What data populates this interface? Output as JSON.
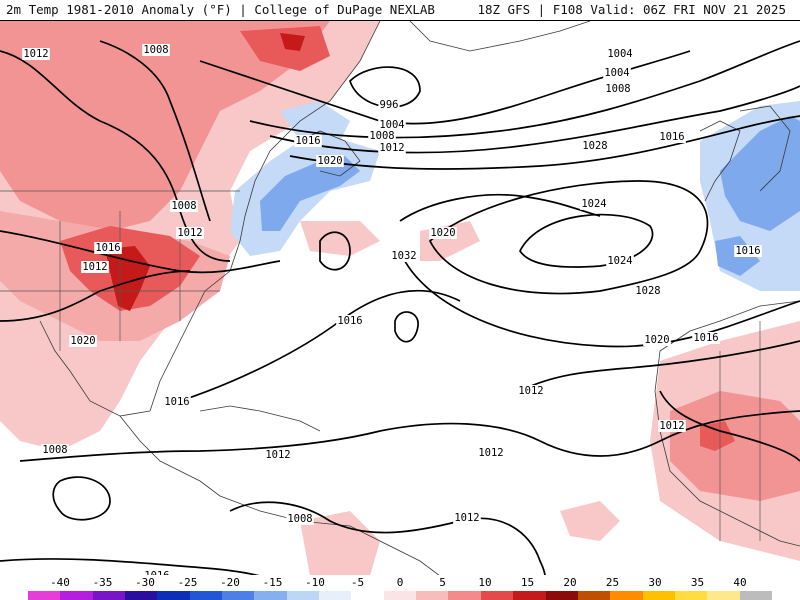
{
  "header": {
    "title_left": "2m Temp 1981-2010 Anomaly (°F) | College of DuPage NEXLAB",
    "title_right": "18Z GFS | F108 Valid: 06Z FRI NOV 21 2025"
  },
  "isobar_labels": [
    "1012",
    "1008",
    "1004",
    "996",
    "1004",
    "1008",
    "1012",
    "1016",
    "1020",
    "1008",
    "1012",
    "1016",
    "1012",
    "1020",
    "1028",
    "1024",
    "1020",
    "1032",
    "1024",
    "1016",
    "1028",
    "1020",
    "1016",
    "1012",
    "1016",
    "1016",
    "1012",
    "1012",
    "1012",
    "1008",
    "1008",
    "1012",
    "1004",
    "1008",
    "1016",
    "1016"
  ],
  "colorbar": {
    "tick_labels": [
      "-40",
      "-35",
      "-30",
      "-25",
      "-20",
      "-15",
      "-10",
      "-5",
      "0",
      "5",
      "10",
      "15",
      "20",
      "25",
      "30",
      "35",
      "40"
    ],
    "colors": [
      "#e63cd8",
      "#b51ee0",
      "#7a14c8",
      "#2a0ea0",
      "#0b2fb8",
      "#2156d6",
      "#4c80e6",
      "#84b0ef",
      "#bcd6f6",
      "#e6effa",
      "#ffffff",
      "#fde4e4",
      "#f9bcbc",
      "#f38b8b",
      "#e44a4a",
      "#c41a1a",
      "#8c0a0a",
      "#c05000",
      "#ff8c00",
      "#ffc000",
      "#ffdc40",
      "#ffe88a",
      "#bcbcbc"
    ]
  }
}
